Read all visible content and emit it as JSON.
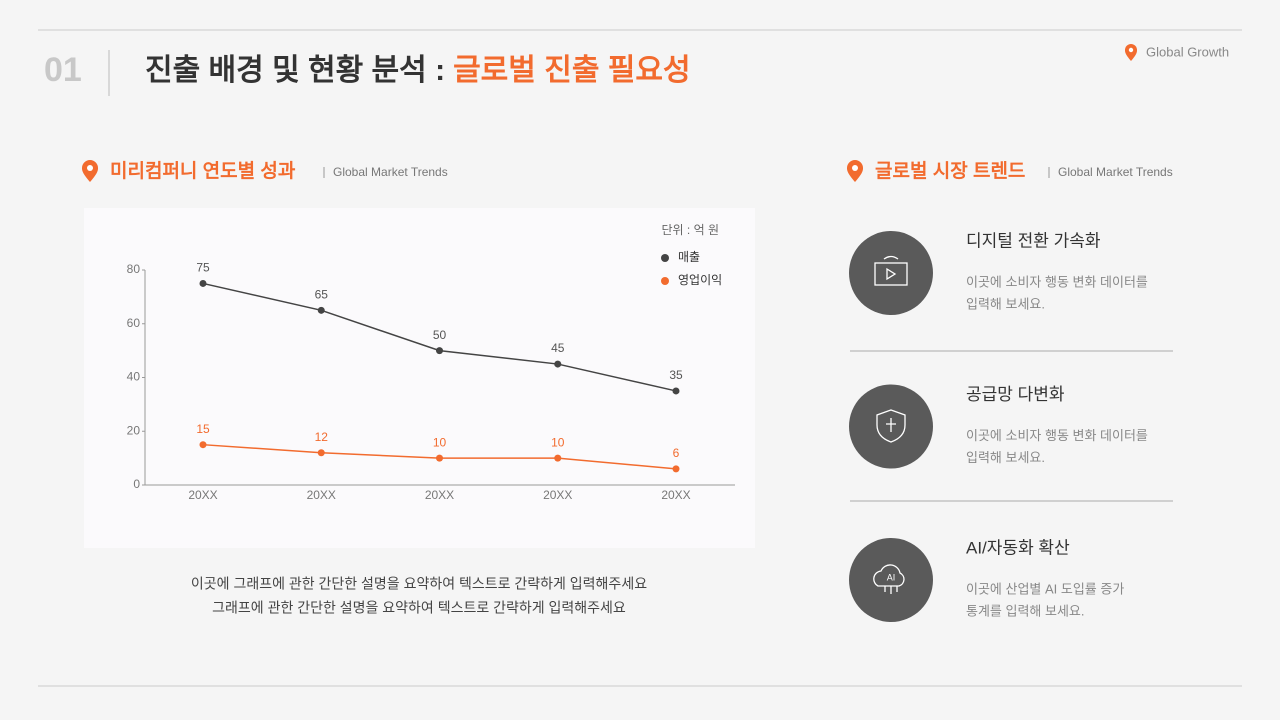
{
  "header": {
    "number": "01",
    "title": "진출 배경 및 현황 분석 :",
    "title_highlight": "글로벌 진출 필요성",
    "tag": "Global Growth"
  },
  "left_section": {
    "heading": "미리컴퍼니 연도별 성과",
    "subheading": "Global Market Trends"
  },
  "chart_data": {
    "type": "line",
    "unit": "단위 : 억 원",
    "categories": [
      "20XX",
      "20XX",
      "20XX",
      "20XX",
      "20XX"
    ],
    "series": [
      {
        "name": "매출",
        "color": "#444444",
        "values": [
          75,
          65,
          50,
          45,
          35
        ]
      },
      {
        "name": "영업이익",
        "color": "#f26b2e",
        "values": [
          15,
          12,
          10,
          10,
          6
        ]
      }
    ],
    "ylim": [
      0,
      80
    ],
    "yticks": [
      0,
      20,
      40,
      60,
      80
    ]
  },
  "caption": [
    "이곳에 그래프에 관한 간단한 설명을 요약하여 텍스트로 간략하게 입력해주세요",
    "그래프에 관한 간단한 설명을 요약하여 텍스트로 간략하게 입력해주세요"
  ],
  "right_section": {
    "heading": "글로벌 시장 트렌드",
    "subheading": "Global Market Trends"
  },
  "trends": [
    {
      "title": "디지털 전환 가속화",
      "lines": [
        "이곳에 소비자 행동 변화 데이터를",
        "입력해 보세요."
      ]
    },
    {
      "title": "공급망 다변화",
      "lines": [
        "이곳에 소비자 행동 변화 데이터를",
        "입력해 보세요."
      ]
    },
    {
      "title": "AI/자동화 확산",
      "lines": [
        "이곳에 산업별 AI 도입률 증가",
        "통계를 입력해 보세요."
      ]
    }
  ]
}
